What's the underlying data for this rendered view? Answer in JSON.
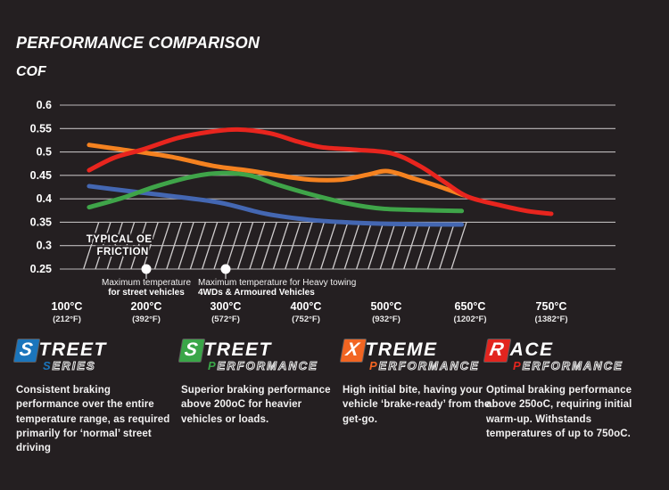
{
  "header": {
    "title": "PERFORMANCE COMPARISON",
    "y_axis_title": "COF"
  },
  "chart_data": {
    "type": "line",
    "title": "PERFORMANCE COMPARISON",
    "ylabel": "COF",
    "ylim": [
      0.25,
      0.6
    ],
    "grid": true,
    "grid_color": "#bdbabb",
    "y_ticks": [
      "0.6",
      "0.55",
      "0.5",
      "0.45",
      "0.4",
      "0.35",
      "0.3",
      "0.25"
    ],
    "y_tick_values": [
      0.6,
      0.55,
      0.5,
      0.45,
      0.4,
      0.35,
      0.3,
      0.25
    ],
    "x_ticks": [
      {
        "temp": 100,
        "label_c": "100°C",
        "label_f": "(212°F)"
      },
      {
        "temp": 200,
        "label_c": "200°C",
        "label_f": "(392°F)"
      },
      {
        "temp": 300,
        "label_c": "300°C",
        "label_f": "(572°F)"
      },
      {
        "temp": 400,
        "label_c": "400°C",
        "label_f": "(752°F)"
      },
      {
        "temp": 500,
        "label_c": "500°C",
        "label_f": "(932°F)"
      },
      {
        "temp": 650,
        "label_c": "650°C",
        "label_f": "(1202°F)"
      },
      {
        "temp": 750,
        "label_c": "750°C",
        "label_f": "(1382°F)"
      }
    ],
    "series": [
      {
        "name": "Street Series",
        "color": "#4467b2",
        "points": [
          [
            128,
            0.427
          ],
          [
            185,
            0.415
          ],
          [
            240,
            0.404
          ],
          [
            295,
            0.391
          ],
          [
            350,
            0.368
          ],
          [
            405,
            0.355
          ],
          [
            460,
            0.349
          ],
          [
            525,
            0.346
          ],
          [
            635,
            0.345
          ]
        ]
      },
      {
        "name": "Street Performance",
        "color": "#3fa449",
        "points": [
          [
            128,
            0.382
          ],
          [
            170,
            0.402
          ],
          [
            215,
            0.428
          ],
          [
            260,
            0.448
          ],
          [
            295,
            0.455
          ],
          [
            330,
            0.45
          ],
          [
            365,
            0.43
          ],
          [
            405,
            0.41
          ],
          [
            455,
            0.389
          ],
          [
            495,
            0.379
          ],
          [
            560,
            0.376
          ],
          [
            635,
            0.374
          ]
        ]
      },
      {
        "name": "Xtreme Performance",
        "color": "#f58220",
        "points": [
          [
            128,
            0.515
          ],
          [
            170,
            0.505
          ],
          [
            230,
            0.49
          ],
          [
            285,
            0.47
          ],
          [
            330,
            0.46
          ],
          [
            365,
            0.45
          ],
          [
            405,
            0.441
          ],
          [
            445,
            0.441
          ],
          [
            478,
            0.452
          ],
          [
            503,
            0.459
          ],
          [
            550,
            0.443
          ],
          [
            590,
            0.428
          ],
          [
            638,
            0.408
          ]
        ]
      },
      {
        "name": "Race Performance",
        "color": "#e8251e",
        "points": [
          [
            128,
            0.461
          ],
          [
            160,
            0.488
          ],
          [
            195,
            0.505
          ],
          [
            240,
            0.53
          ],
          [
            280,
            0.543
          ],
          [
            315,
            0.548
          ],
          [
            355,
            0.54
          ],
          [
            390,
            0.522
          ],
          [
            420,
            0.51
          ],
          [
            460,
            0.505
          ],
          [
            510,
            0.497
          ],
          [
            560,
            0.47
          ],
          [
            605,
            0.435
          ],
          [
            645,
            0.405
          ],
          [
            685,
            0.387
          ],
          [
            720,
            0.374
          ],
          [
            750,
            0.368
          ]
        ]
      }
    ],
    "oe_zone": {
      "label_line1": "TYPICAL OE",
      "label_line2": "FRICTION",
      "cof_top": 0.35,
      "cof_bottom": 0.25,
      "temp_start": 121,
      "temp_end": 622
    },
    "markers": [
      {
        "temp": 200,
        "line1": "Maximum temperature",
        "line2": "for street vehicles",
        "align": "center"
      },
      {
        "temp": 300,
        "line1": "Maximum temperature for Heavy towing",
        "line2": "4WDs & Armoured Vehicles",
        "align": "left"
      }
    ]
  },
  "products": [
    {
      "initial": "S",
      "word": "TREET",
      "sub_initial": "S",
      "sub_word": "ERIES",
      "color": "#1b75bc",
      "desc": "Consistent braking performance over the entire temperature range, as required primarily for ‘normal’ street driving"
    },
    {
      "initial": "S",
      "word": "TREET",
      "sub_initial": "P",
      "sub_word": "ERFORMANCE",
      "color": "#3aa648",
      "desc": "Superior braking performance above 200oC for heavier vehicles or loads."
    },
    {
      "initial": "X",
      "word": "TREME",
      "sub_initial": "P",
      "sub_word": "ERFORMANCE",
      "color": "#f26522",
      "desc": "High initial bite, having your vehicle ‘brake-ready’ from the get-go."
    },
    {
      "initial": "R",
      "word": "ACE",
      "sub_initial": "P",
      "sub_word": "ERFORMANCE",
      "color": "#e2251f",
      "desc": "Optimal braking performance above 250oC, requiring initial warm-up. Withstands temperatures of up to 750oC."
    }
  ]
}
